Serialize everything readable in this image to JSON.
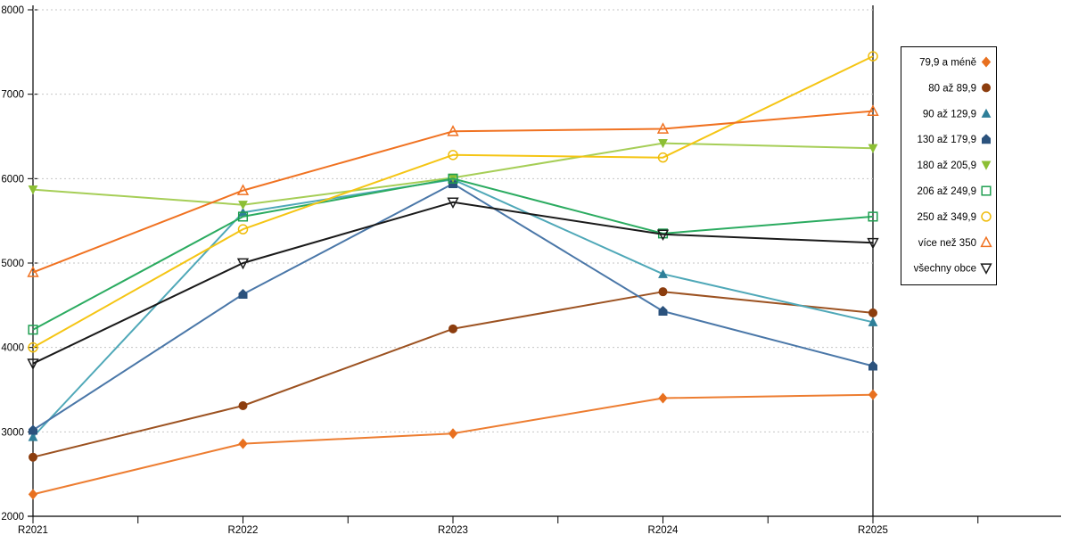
{
  "chart_data": {
    "type": "line",
    "title": "",
    "xlabel": "",
    "ylabel": "",
    "categories": [
      "R2021",
      "R2022",
      "R2023",
      "R2024",
      "R2025"
    ],
    "ylim": [
      2000,
      8000
    ],
    "ytick_step": 1000,
    "ytick_labels": [
      "2000",
      "3000",
      "4000",
      "5000",
      "6000",
      "7000",
      "8000"
    ],
    "grid": "horizontal-dashed",
    "legend_position": "right",
    "colors": {
      "axis": "#000000",
      "gridline": "#c6c6c6",
      "background": "#ffffff",
      "legend_border": "#000000"
    },
    "series": [
      {
        "name": "79,9 a méně",
        "marker": "diamond-icon",
        "filled": true,
        "line_color": "#ED7D31",
        "marker_color": "#E8701F",
        "values": [
          2260,
          2860,
          2980,
          3400,
          3440
        ]
      },
      {
        "name": "80 až 89,9",
        "marker": "circle-icon",
        "filled": true,
        "line_color": "#9C5221",
        "marker_color": "#8C3D0E",
        "values": [
          2700,
          3310,
          4220,
          4660,
          4410
        ]
      },
      {
        "name": "90 až 129,9",
        "marker": "triangle-up-icon",
        "filled": true,
        "line_color": "#4FA8B8",
        "marker_color": "#2E7F99",
        "values": [
          2940,
          5600,
          5990,
          4870,
          4300
        ]
      },
      {
        "name": "130 až 179,9",
        "marker": "pentagon-icon",
        "filled": true,
        "line_color": "#4A77A8",
        "marker_color": "#2B527D",
        "values": [
          3020,
          4630,
          5940,
          4430,
          3780
        ]
      },
      {
        "name": "180 až 205,9",
        "marker": "triangle-down-icon",
        "filled": true,
        "line_color": "#A6CE57",
        "marker_color": "#8CBF34",
        "values": [
          5870,
          5690,
          6010,
          6420,
          6360
        ]
      },
      {
        "name": "206 až 249,9",
        "marker": "square-open-icon",
        "filled": false,
        "line_color": "#2BAB60",
        "marker_color": "#1E9E50",
        "values": [
          4210,
          5550,
          6000,
          5350,
          5550
        ]
      },
      {
        "name": "250 až 349,9",
        "marker": "circle-open-icon",
        "filled": false,
        "line_color": "#F5C514",
        "marker_color": "#EFBC0C",
        "values": [
          4000,
          5400,
          6280,
          6250,
          7450
        ]
      },
      {
        "name": "více než 350",
        "marker": "triangle-up-open-icon",
        "filled": false,
        "line_color": "#F07221",
        "marker_color": "#F07221",
        "values": [
          4890,
          5860,
          6560,
          6590,
          6800
        ]
      },
      {
        "name": "všechny obce",
        "marker": "triangle-down-open-icon",
        "filled": false,
        "line_color": "#1A1A1A",
        "marker_color": "#1A1A1A",
        "values": [
          3810,
          5000,
          5720,
          5340,
          5240
        ]
      }
    ]
  }
}
